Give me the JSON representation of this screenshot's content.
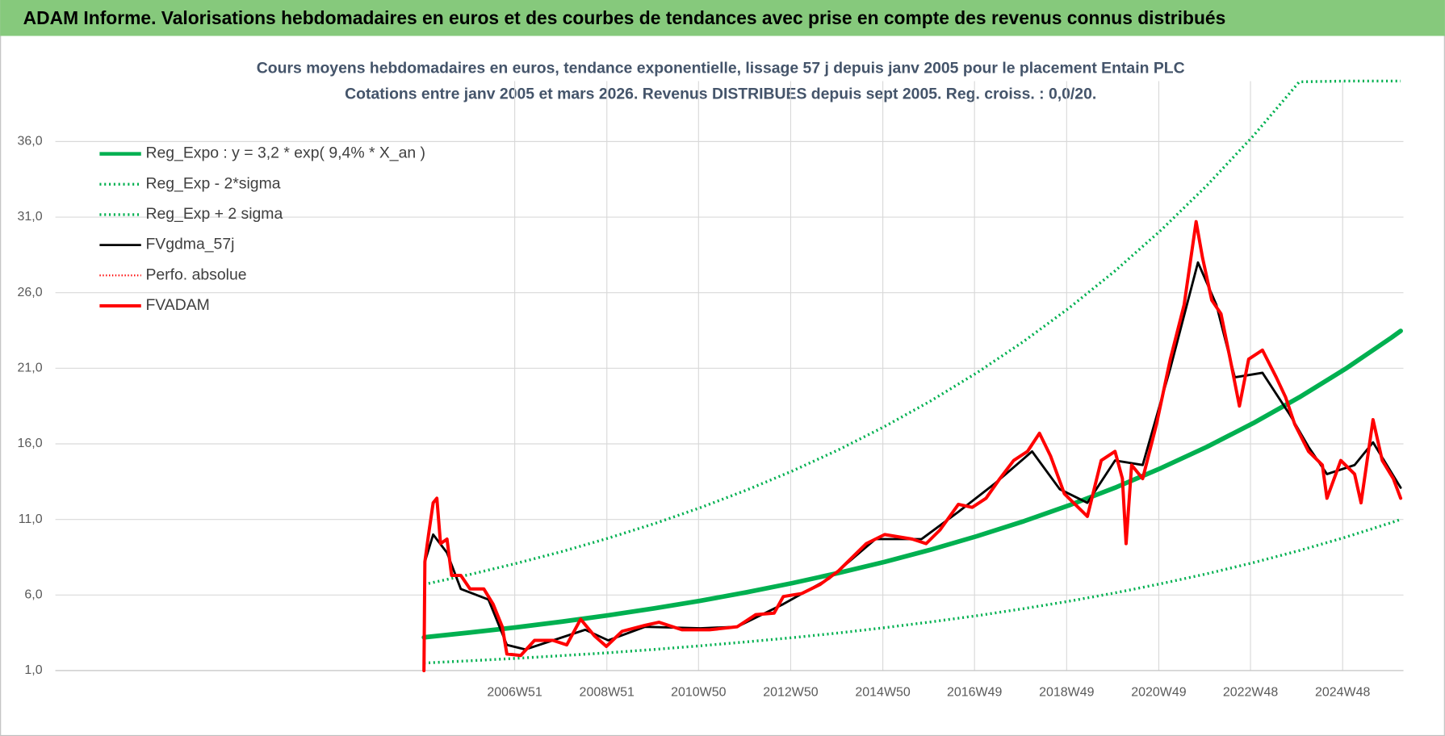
{
  "header": {
    "title": "ADAM Informe. Valorisations hebdomadaires en euros et des courbes de tendances avec prise en compte des revenus connus distribués"
  },
  "chart_data": {
    "type": "line",
    "title": "Cours moyens hebdomadaires en euros, tendance exponentielle, lissage 57 j depuis janv 2005  pour le placement Entain PLC",
    "subtitle": "Cotations entre janv 2005 et mars 2026. Revenus DISTRIBUES depuis sept 2005. Reg. croiss. : 0,0/20.",
    "xlim": [
      1997,
      2026.26
    ],
    "xticks": [
      {
        "value": 2006.97,
        "label": "2006W51"
      },
      {
        "value": 2008.97,
        "label": "2008W51"
      },
      {
        "value": 2010.96,
        "label": "2010W50"
      },
      {
        "value": 2012.96,
        "label": "2012W50"
      },
      {
        "value": 2014.96,
        "label": "2014W50"
      },
      {
        "value": 2016.95,
        "label": "2016W49"
      },
      {
        "value": 2018.95,
        "label": "2018W49"
      },
      {
        "value": 2020.95,
        "label": "2020W49"
      },
      {
        "value": 2022.94,
        "label": "2022W48"
      },
      {
        "value": 2024.94,
        "label": "2024W48"
      }
    ],
    "ylim": [
      1,
      40
    ],
    "yticks": [
      {
        "value": 1,
        "label": "1,0"
      },
      {
        "value": 6,
        "label": "6,0"
      },
      {
        "value": 11,
        "label": "11,0"
      },
      {
        "value": 16,
        "label": "16,0"
      },
      {
        "value": 21,
        "label": "21,0"
      },
      {
        "value": 26,
        "label": "26,0"
      },
      {
        "value": 31,
        "label": "31,0"
      },
      {
        "value": 36,
        "label": "36,0"
      }
    ],
    "grid": true,
    "legend": "upper left",
    "series": [
      {
        "name": "Reg_Expo : y = 3,2 * exp( 9,4% *  X_an )",
        "color": "#00b050",
        "width": 5,
        "dash": "solid",
        "x": [
          2005,
          2006,
          2007,
          2008,
          2009,
          2010,
          2011,
          2012,
          2013,
          2014,
          2015,
          2016,
          2017,
          2018,
          2019,
          2020,
          2021,
          2022,
          2023,
          2024,
          2025,
          2026,
          2026.2
        ],
        "values": [
          3.2,
          3.52,
          3.86,
          4.24,
          4.66,
          5.12,
          5.62,
          6.18,
          6.79,
          7.46,
          8.19,
          9.0,
          9.89,
          10.86,
          11.93,
          13.1,
          14.4,
          15.81,
          17.37,
          19.08,
          20.96,
          23.03,
          23.47
        ]
      },
      {
        "name": "Reg_Exp - 2*sigma",
        "color": "#00b050",
        "width": 3,
        "dash": "dotted",
        "x": [
          2005,
          2006,
          2007,
          2008,
          2009,
          2010,
          2011,
          2012,
          2013,
          2014,
          2015,
          2016,
          2017,
          2018,
          2019,
          2020,
          2021,
          2022,
          2023,
          2024,
          2025,
          2026,
          2026.2
        ],
        "values": [
          1.5,
          1.65,
          1.81,
          1.99,
          2.18,
          2.4,
          2.64,
          2.9,
          3.18,
          3.49,
          3.84,
          4.22,
          4.63,
          5.09,
          5.59,
          6.14,
          6.75,
          7.41,
          8.14,
          8.94,
          9.82,
          10.79,
          11.0
        ]
      },
      {
        "name": "Reg_Exp + 2 sigma",
        "color": "#00b050",
        "width": 3,
        "dash": "dotted",
        "x": [
          2005,
          2006,
          2007,
          2008,
          2009,
          2010,
          2011,
          2012,
          2013,
          2014,
          2015,
          2016,
          2017,
          2018,
          2019,
          2020,
          2021,
          2022,
          2023,
          2024,
          2025,
          2026,
          2026.2
        ],
        "values": [
          6.7,
          7.36,
          8.09,
          8.88,
          9.76,
          10.72,
          11.78,
          12.94,
          14.21,
          15.61,
          17.15,
          18.84,
          20.7,
          22.74,
          24.98,
          27.44,
          30.14,
          33.11,
          36.37,
          39.95,
          40,
          40,
          40
        ]
      },
      {
        "name": "FVgdma_57j",
        "color": "#000000",
        "width": 2.5,
        "dash": "solid",
        "x": [
          2005.02,
          2005.2,
          2005.5,
          2005.8,
          2006.4,
          2006.8,
          2007.2,
          2007.8,
          2008.5,
          2009.0,
          2009.8,
          2011.0,
          2011.8,
          2012.8,
          2013.8,
          2014.8,
          2015.8,
          2016.6,
          2017.4,
          2018.2,
          2018.8,
          2019.4,
          2020.0,
          2020.6,
          2021.2,
          2021.8,
          2022.2,
          2022.6,
          2023.2,
          2023.8,
          2024.2,
          2024.6,
          2025.2,
          2025.6,
          2026.2
        ],
        "values": [
          8.2,
          10.0,
          8.8,
          6.4,
          5.7,
          2.7,
          2.4,
          3.0,
          3.7,
          3.0,
          3.9,
          3.8,
          3.9,
          5.4,
          7.1,
          9.7,
          9.7,
          11.5,
          13.4,
          15.5,
          13.0,
          12.1,
          14.9,
          14.6,
          21.0,
          28.0,
          25.2,
          20.4,
          20.7,
          17.9,
          15.8,
          14.0,
          14.6,
          16.1,
          13.1
        ]
      },
      {
        "name": "Perfo. absolue",
        "color": "#ff0000",
        "width": 2,
        "dash": "dotted",
        "x": [],
        "values": []
      },
      {
        "name": "FVADAM",
        "color": "#ff0000",
        "width": 3.5,
        "dash": "solid",
        "x": [
          2005.0,
          2005.02,
          2005.1,
          2005.2,
          2005.28,
          2005.36,
          2005.5,
          2005.6,
          2005.8,
          2006.0,
          2006.3,
          2006.5,
          2006.7,
          2006.8,
          2007.1,
          2007.4,
          2007.8,
          2008.1,
          2008.4,
          2008.7,
          2008.96,
          2009.3,
          2009.8,
          2010.1,
          2010.6,
          2011.2,
          2011.8,
          2012.2,
          2012.6,
          2012.8,
          2013.2,
          2013.6,
          2014.0,
          2014.3,
          2014.6,
          2015.0,
          2015.6,
          2015.9,
          2016.2,
          2016.6,
          2016.9,
          2017.2,
          2017.5,
          2017.8,
          2018.1,
          2018.36,
          2018.6,
          2018.9,
          2019.2,
          2019.4,
          2019.7,
          2020.0,
          2020.16,
          2020.24,
          2020.36,
          2020.6,
          2020.9,
          2021.2,
          2021.5,
          2021.76,
          2021.9,
          2022.1,
          2022.3,
          2022.5,
          2022.7,
          2022.9,
          2023.2,
          2023.5,
          2023.7,
          2023.9,
          2024.2,
          2024.5,
          2024.6,
          2024.9,
          2025.2,
          2025.34,
          2025.6,
          2025.8,
          2026.04,
          2026.2
        ],
        "values": [
          1.0,
          8.2,
          10.0,
          12.1,
          12.4,
          9.4,
          9.7,
          7.3,
          7.3,
          6.4,
          6.4,
          5.4,
          3.9,
          2.1,
          2.0,
          3.0,
          3.0,
          2.7,
          4.4,
          3.3,
          2.6,
          3.6,
          4.0,
          4.2,
          3.7,
          3.7,
          3.9,
          4.7,
          4.8,
          5.9,
          6.1,
          6.7,
          7.6,
          8.5,
          9.4,
          10.0,
          9.7,
          9.4,
          10.3,
          12.0,
          11.8,
          12.4,
          13.7,
          14.9,
          15.5,
          16.7,
          15.2,
          12.7,
          11.8,
          11.2,
          14.9,
          15.5,
          13.7,
          9.4,
          14.6,
          13.7,
          17.3,
          21.6,
          25.2,
          30.7,
          28.3,
          25.5,
          24.6,
          21.6,
          18.5,
          21.6,
          22.2,
          20.4,
          19.1,
          17.3,
          15.5,
          14.6,
          12.4,
          14.9,
          14.0,
          12.1,
          17.6,
          14.9,
          13.7,
          12.4
        ]
      }
    ]
  }
}
